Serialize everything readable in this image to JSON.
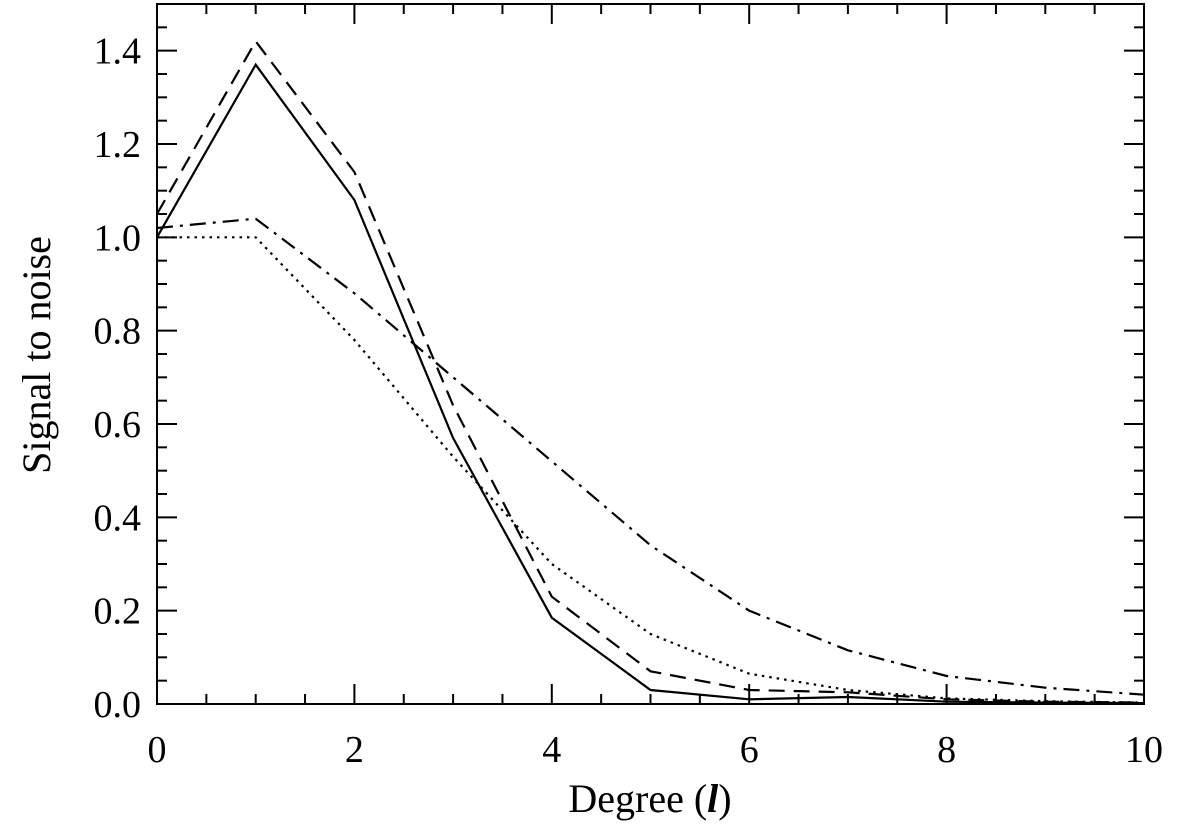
{
  "chart_data": {
    "type": "line",
    "title": "",
    "xlabel_prefix": "Degree (",
    "xlabel_symbol": "l",
    "xlabel_suffix": ")",
    "ylabel": "Signal to noise",
    "xlim": [
      0,
      10
    ],
    "ylim": [
      0,
      1.5
    ],
    "x_ticks": [
      0,
      2,
      4,
      6,
      8,
      10
    ],
    "x_tick_labels": [
      "0",
      "2",
      "4",
      "6",
      "8",
      "10"
    ],
    "x_minor_step": 0.5,
    "y_ticks": [
      0,
      0.2,
      0.4,
      0.6,
      0.8,
      1.0,
      1.2,
      1.4
    ],
    "y_tick_labels": [
      "0.0",
      "0.2",
      "0.4",
      "0.6",
      "0.8",
      "1.0",
      "1.2",
      "1.4"
    ],
    "y_minor_step": 0.05,
    "grid": false,
    "x": [
      0,
      1,
      2,
      3,
      4,
      5,
      6,
      7,
      8,
      9,
      10
    ],
    "series": [
      {
        "style": "solid",
        "values": [
          1.0,
          1.37,
          1.08,
          0.57,
          0.185,
          0.03,
          0.01,
          0.015,
          0.005,
          0.003,
          0.002
        ]
      },
      {
        "style": "dashed",
        "values": [
          1.05,
          1.42,
          1.14,
          0.64,
          0.23,
          0.07,
          0.03,
          0.025,
          0.01,
          0.005,
          0.003
        ]
      },
      {
        "style": "dotted",
        "values": [
          1.0,
          1.0,
          0.78,
          0.53,
          0.3,
          0.15,
          0.065,
          0.03,
          0.012,
          0.006,
          0.003
        ]
      },
      {
        "style": "dashdot",
        "values": [
          1.02,
          1.04,
          0.88,
          0.7,
          0.52,
          0.34,
          0.2,
          0.115,
          0.06,
          0.035,
          0.02
        ]
      }
    ]
  }
}
